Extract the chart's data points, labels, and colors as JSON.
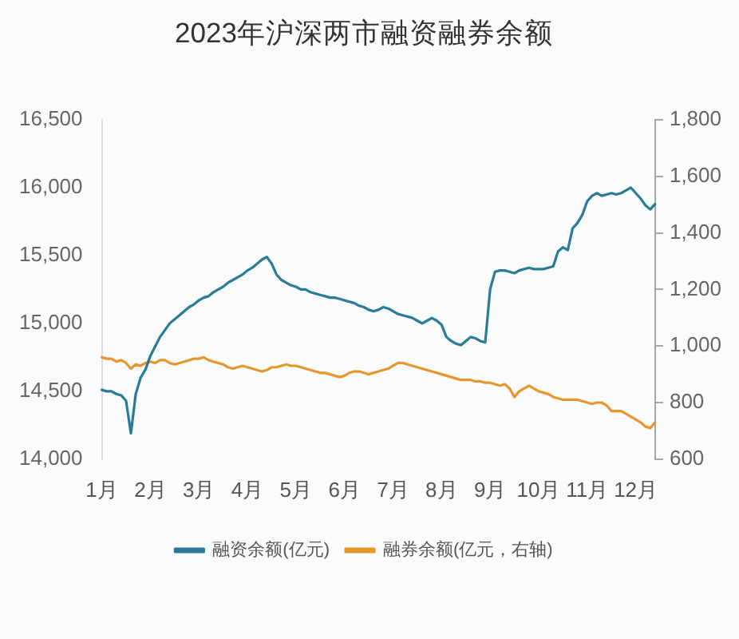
{
  "chart_data": {
    "type": "line",
    "title": "2023年沪深两市融资融券余额",
    "categories": [
      "1月",
      null,
      null,
      null,
      null,
      null,
      null,
      null,
      null,
      null,
      "2月",
      null,
      null,
      null,
      null,
      null,
      null,
      null,
      null,
      null,
      "3月",
      null,
      null,
      null,
      null,
      null,
      null,
      null,
      null,
      null,
      "4月",
      null,
      null,
      null,
      null,
      null,
      null,
      null,
      null,
      null,
      "5月",
      null,
      null,
      null,
      null,
      null,
      null,
      null,
      null,
      null,
      "6月",
      null,
      null,
      null,
      null,
      null,
      null,
      null,
      null,
      null,
      "7月",
      null,
      null,
      null,
      null,
      null,
      null,
      null,
      null,
      null,
      "8月",
      null,
      null,
      null,
      null,
      null,
      null,
      null,
      null,
      null,
      "9月",
      null,
      null,
      null,
      null,
      null,
      null,
      null,
      null,
      null,
      "10月",
      null,
      null,
      null,
      null,
      null,
      null,
      null,
      null,
      null,
      "11月",
      null,
      null,
      null,
      null,
      null,
      null,
      null,
      null,
      null,
      "12月",
      null,
      null,
      null,
      null
    ],
    "series": [
      {
        "name": "融资余额(亿元)",
        "color": "#2a7b96",
        "values": [
          14510,
          14500,
          14500,
          14480,
          14470,
          14430,
          14190,
          14480,
          14600,
          14660,
          14760,
          14830,
          14900,
          14950,
          15000,
          15030,
          15060,
          15090,
          15120,
          15140,
          15170,
          15190,
          15200,
          15230,
          15250,
          15270,
          15300,
          15320,
          15340,
          15360,
          15390,
          15410,
          15440,
          15470,
          15490,
          15440,
          15360,
          15320,
          15300,
          15280,
          15270,
          15250,
          15250,
          15230,
          15220,
          15210,
          15200,
          15190,
          15190,
          15180,
          15170,
          15160,
          15150,
          15130,
          15120,
          15100,
          15090,
          15100,
          15120,
          15110,
          15090,
          15070,
          15060,
          15050,
          15040,
          15020,
          15000,
          15020,
          15040,
          15020,
          14990,
          14900,
          14870,
          14850,
          14840,
          14870,
          14900,
          14890,
          14870,
          14860,
          15250,
          15380,
          15390,
          15390,
          15380,
          15370,
          15390,
          15400,
          15410,
          15400,
          15400,
          15400,
          15410,
          15420,
          15530,
          15560,
          15540,
          15700,
          15740,
          15800,
          15900,
          15940,
          15960,
          15940,
          15950,
          15960,
          15950,
          15960,
          15980,
          16000,
          15960,
          15920,
          15870,
          15840,
          15880
        ]
      },
      {
        "name": "融券余额(亿元，右轴)",
        "color": "#e6962a",
        "axis": "y2",
        "values": [
          960,
          955,
          955,
          945,
          950,
          940,
          920,
          935,
          930,
          940,
          945,
          940,
          950,
          950,
          940,
          935,
          940,
          945,
          950,
          955,
          955,
          960,
          950,
          945,
          940,
          935,
          925,
          920,
          925,
          930,
          925,
          920,
          915,
          910,
          915,
          925,
          925,
          930,
          935,
          930,
          930,
          925,
          920,
          915,
          910,
          905,
          905,
          900,
          895,
          890,
          895,
          905,
          910,
          910,
          905,
          900,
          905,
          910,
          915,
          920,
          930,
          940,
          940,
          935,
          930,
          925,
          920,
          915,
          910,
          905,
          900,
          895,
          890,
          885,
          880,
          880,
          880,
          875,
          875,
          870,
          870,
          865,
          860,
          865,
          850,
          820,
          840,
          850,
          860,
          850,
          840,
          835,
          830,
          820,
          815,
          810,
          810,
          810,
          810,
          805,
          800,
          795,
          800,
          800,
          790,
          770,
          770,
          770,
          760,
          750,
          740,
          730,
          715,
          710,
          730
        ]
      }
    ],
    "ylim": [
      14000,
      16500
    ],
    "yticks": [
      {
        "value": 14000,
        "label": "14,000"
      },
      {
        "value": 14500,
        "label": "14,500"
      },
      {
        "value": 15000,
        "label": "15,000"
      },
      {
        "value": 15500,
        "label": "15,500"
      },
      {
        "value": 16000,
        "label": "16,000"
      },
      {
        "value": 16500,
        "label": "16,500"
      }
    ],
    "y2lim": [
      600,
      1800
    ],
    "y2ticks": [
      600,
      800,
      {
        "value": 1000,
        "label": "1,000"
      },
      {
        "value": 1200,
        "label": "1,200"
      },
      {
        "value": 1400,
        "label": "1,400"
      },
      {
        "value": 1600,
        "label": "1,600"
      },
      {
        "value": 1800,
        "label": "1,800"
      }
    ],
    "legend": "bottom"
  }
}
